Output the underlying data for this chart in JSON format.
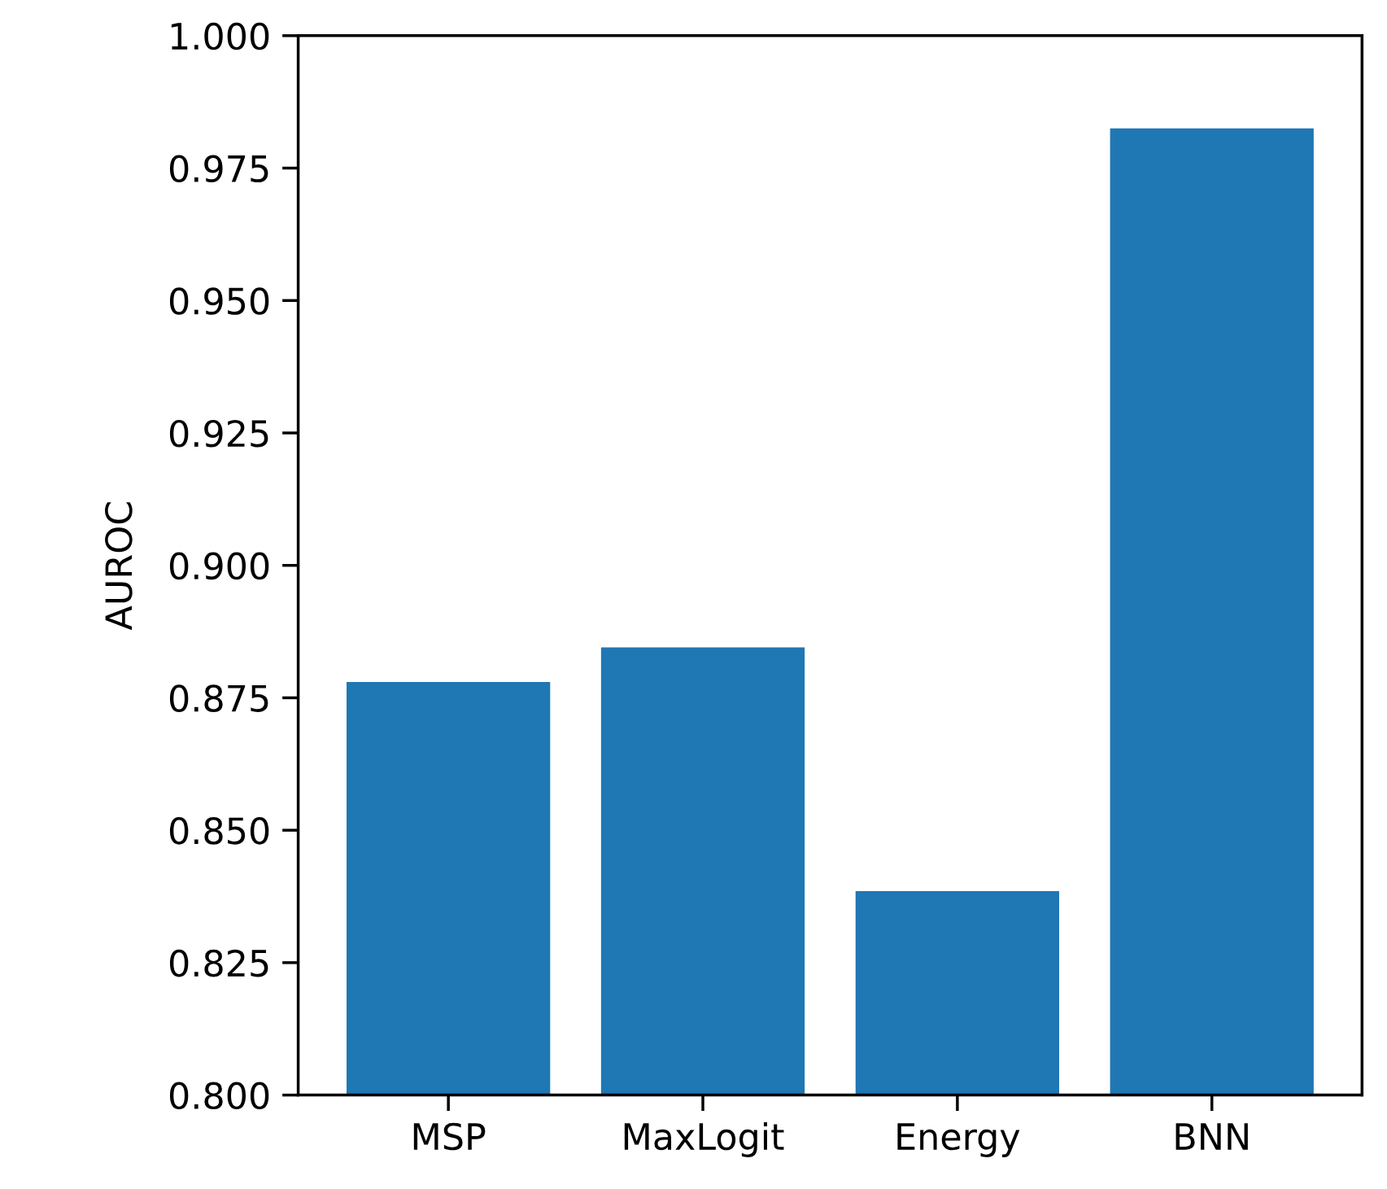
{
  "chart_data": {
    "type": "bar",
    "ylabel": "AUROC",
    "categories": [
      "MSP",
      "MaxLogit",
      "Energy",
      "BNN"
    ],
    "values": [
      0.878,
      0.8845,
      0.8385,
      0.9825
    ],
    "color": "#1f77b4",
    "ylim": [
      0.8,
      1.0
    ],
    "yticks": [
      {
        "value": 0.8,
        "label": "0.800"
      },
      {
        "value": 0.825,
        "label": "0.825"
      },
      {
        "value": 0.85,
        "label": "0.850"
      },
      {
        "value": 0.875,
        "label": "0.875"
      },
      {
        "value": 0.9,
        "label": "0.900"
      },
      {
        "value": 0.925,
        "label": "0.925"
      },
      {
        "value": 0.95,
        "label": "0.950"
      },
      {
        "value": 0.975,
        "label": "0.975"
      },
      {
        "value": 1.0,
        "label": "1.000"
      }
    ],
    "grid": false
  }
}
